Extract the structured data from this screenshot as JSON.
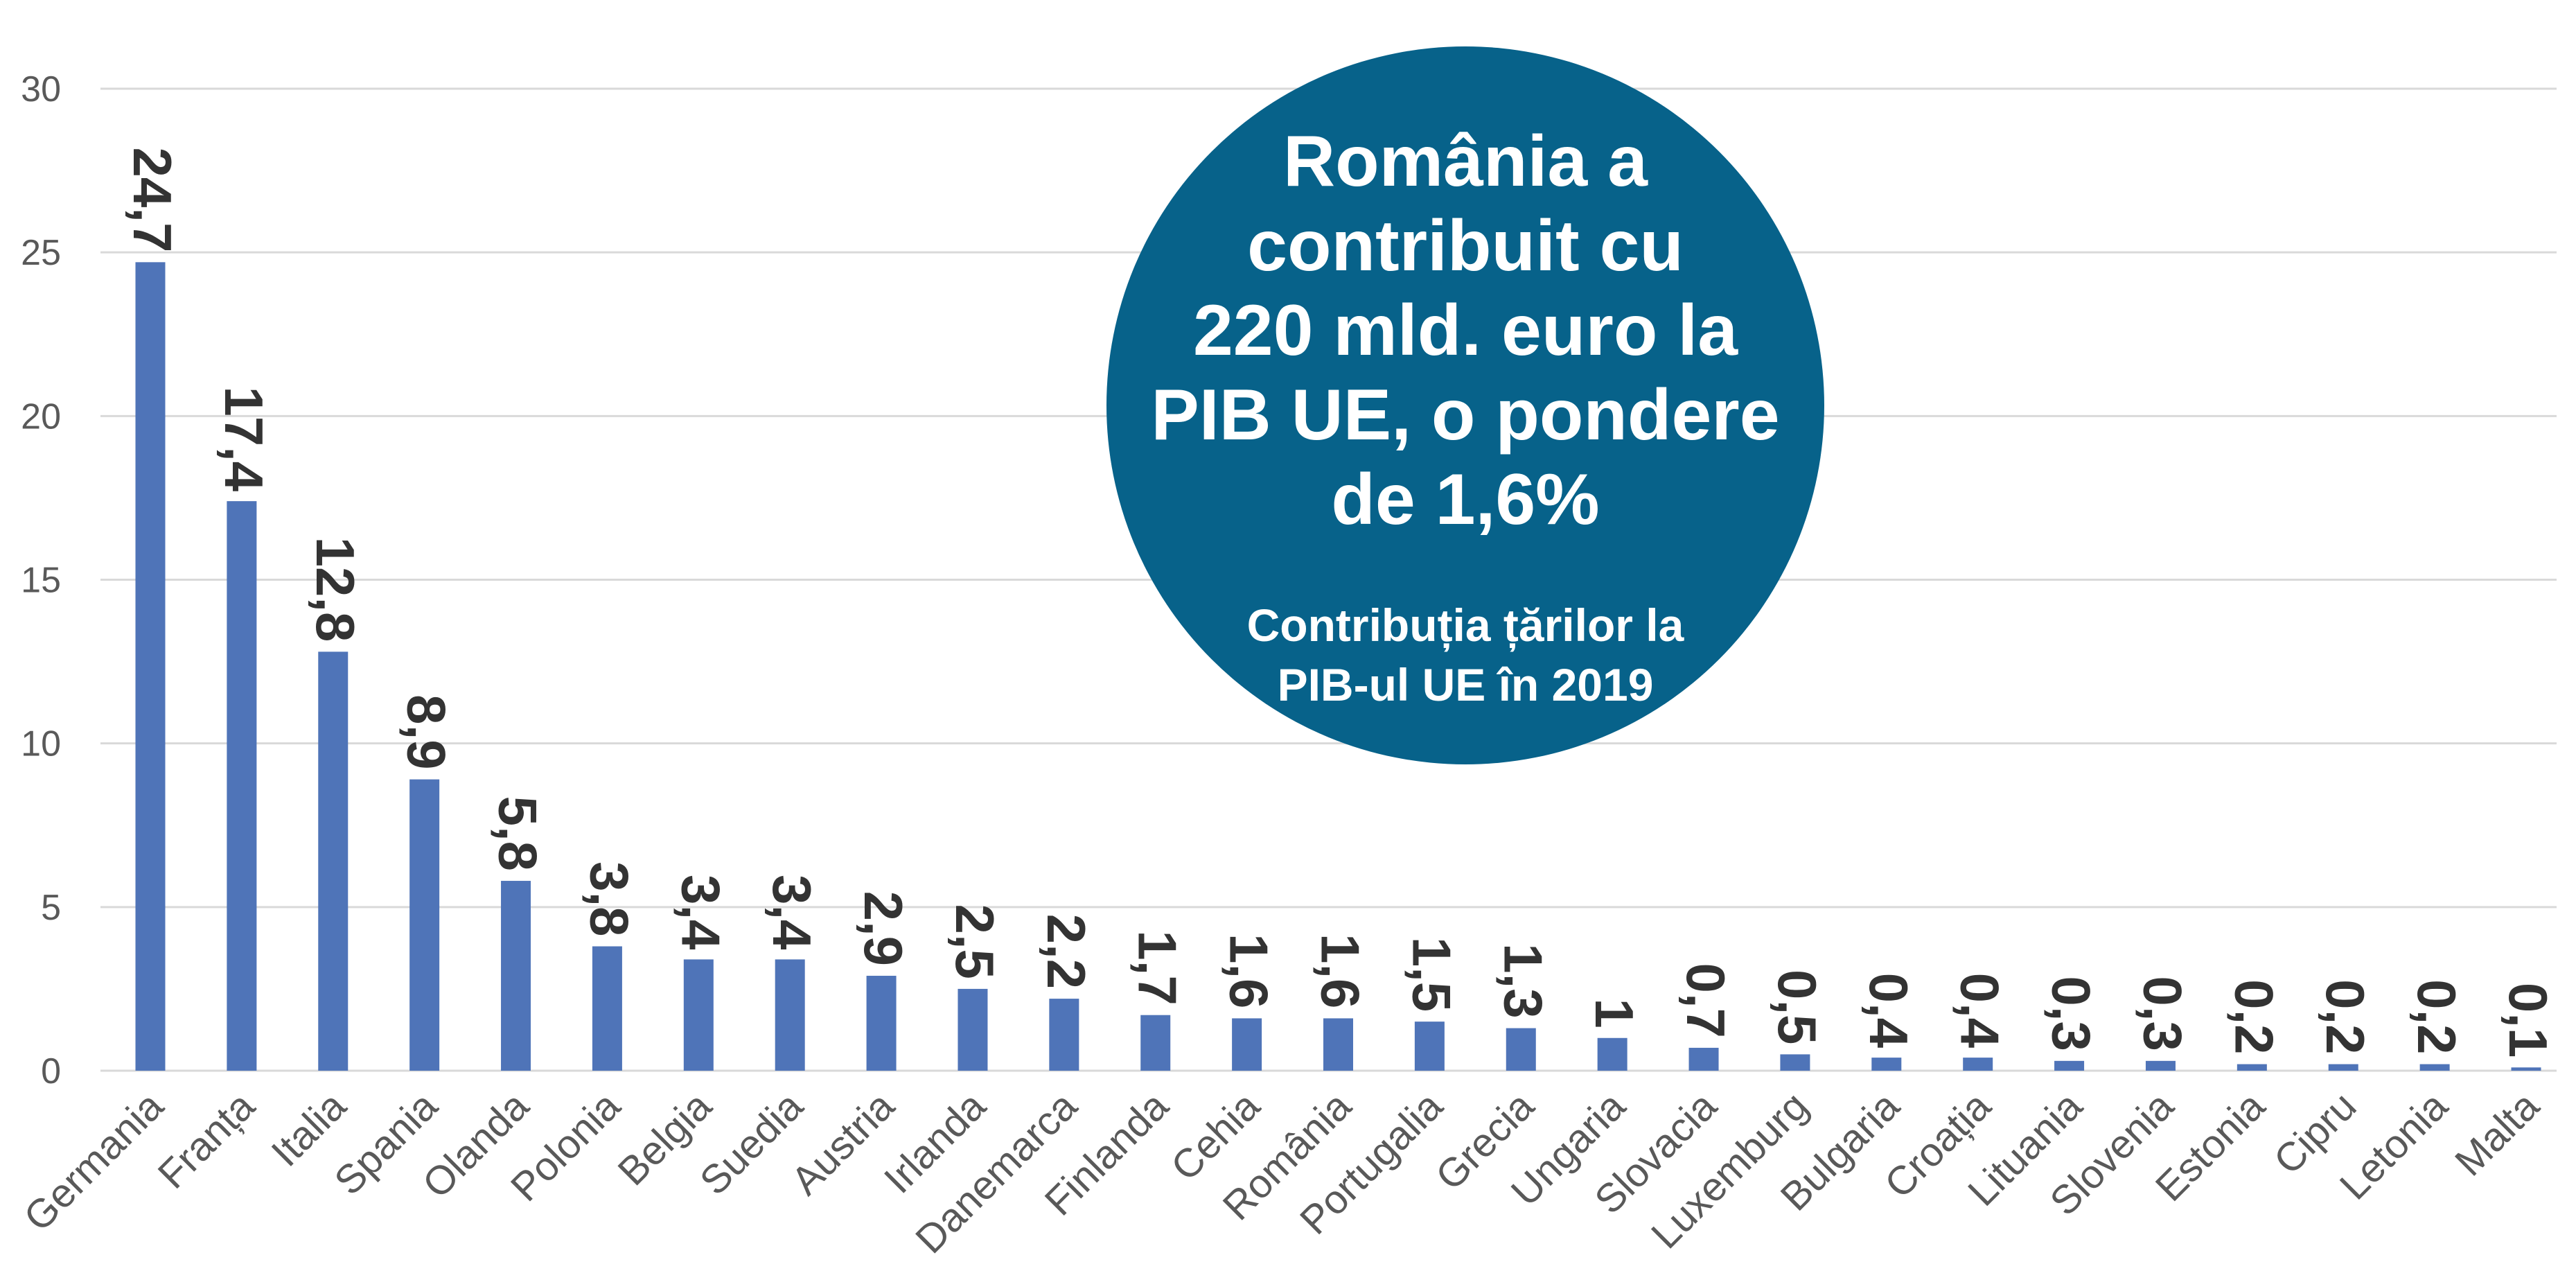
{
  "colors": {
    "bar": "#4f74b8",
    "callout": "#07628a",
    "grid": "#d9d9d9",
    "axis_text": "#595959",
    "data_label": "#333333"
  },
  "callout": {
    "title_lines": [
      "România a",
      "contribuit cu",
      "220 mld. euro la",
      "PIB UE, o pondere",
      "de 1,6%"
    ],
    "subtitle_lines": [
      "Contribuția țărilor la",
      "PIB-ul UE în 2019"
    ]
  },
  "chart_data": {
    "type": "bar",
    "title": "",
    "xlabel": "",
    "ylabel": "",
    "ylim": [
      0,
      30
    ],
    "yticks": [
      "0",
      "5",
      "10",
      "15",
      "20",
      "25",
      "30"
    ],
    "grid": true,
    "categories": [
      "Germania",
      "Franța",
      "Italia",
      "Spania",
      "Olanda",
      "Polonia",
      "Belgia",
      "Suedia",
      "Austria",
      "Irlanda",
      "Danemarca",
      "Finlanda",
      "Cehia",
      "România",
      "Portugalia",
      "Grecia",
      "Ungaria",
      "Slovacia",
      "Luxemburg",
      "Bulgaria",
      "Croația",
      "Lituania",
      "Slovenia",
      "Estonia",
      "Cipru",
      "Letonia",
      "Malta"
    ],
    "values": [
      24.7,
      17.4,
      12.8,
      8.9,
      5.8,
      3.8,
      3.4,
      3.4,
      2.9,
      2.5,
      2.2,
      1.7,
      1.6,
      1.6,
      1.5,
      1.3,
      1,
      0.7,
      0.5,
      0.4,
      0.4,
      0.3,
      0.3,
      0.2,
      0.2,
      0.2,
      0.1
    ],
    "value_labels": [
      "24,7",
      "17,4",
      "12,8",
      "8,9",
      "5,8",
      "3,8",
      "3,4",
      "3,4",
      "2,9",
      "2,5",
      "2,2",
      "1,7",
      "1,6",
      "1,6",
      "1,5",
      "1,3",
      "1",
      "0,7",
      "0,5",
      "0,4",
      "0,4",
      "0,3",
      "0,3",
      "0,2",
      "0,2",
      "0,2",
      "0,1"
    ]
  }
}
